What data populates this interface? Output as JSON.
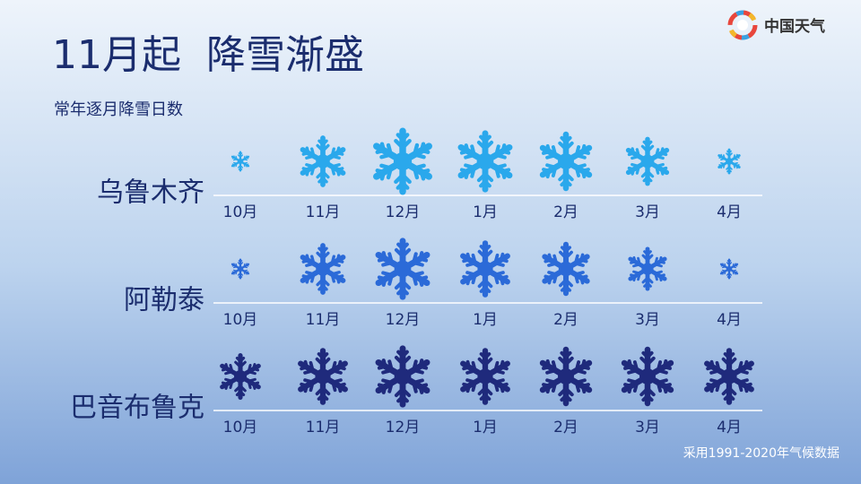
{
  "header": {
    "logo": "中国天气"
  },
  "chart_data": {
    "type": "pictogram",
    "title": "11月起  降雪渐盛",
    "subtitle": "常年逐月降雪日数",
    "categories": [
      "10月",
      "11月",
      "12月",
      "1月",
      "2月",
      "3月",
      "4月"
    ],
    "series": [
      {
        "name": "乌鲁木齐",
        "color": "#2aa8ec",
        "values": [
          4,
          10,
          13,
          12,
          11.5,
          9.5,
          5
        ]
      },
      {
        "name": "阿勒泰",
        "color": "#2b6ad8",
        "values": [
          4,
          10,
          12,
          11,
          10.5,
          8.5,
          4
        ]
      },
      {
        "name": "巴音布鲁克",
        "color": "#1f2a7c",
        "values": [
          9,
          11,
          12,
          11,
          11.5,
          11.5,
          11
        ]
      }
    ],
    "note": "采用1991-2020年气候数据"
  }
}
